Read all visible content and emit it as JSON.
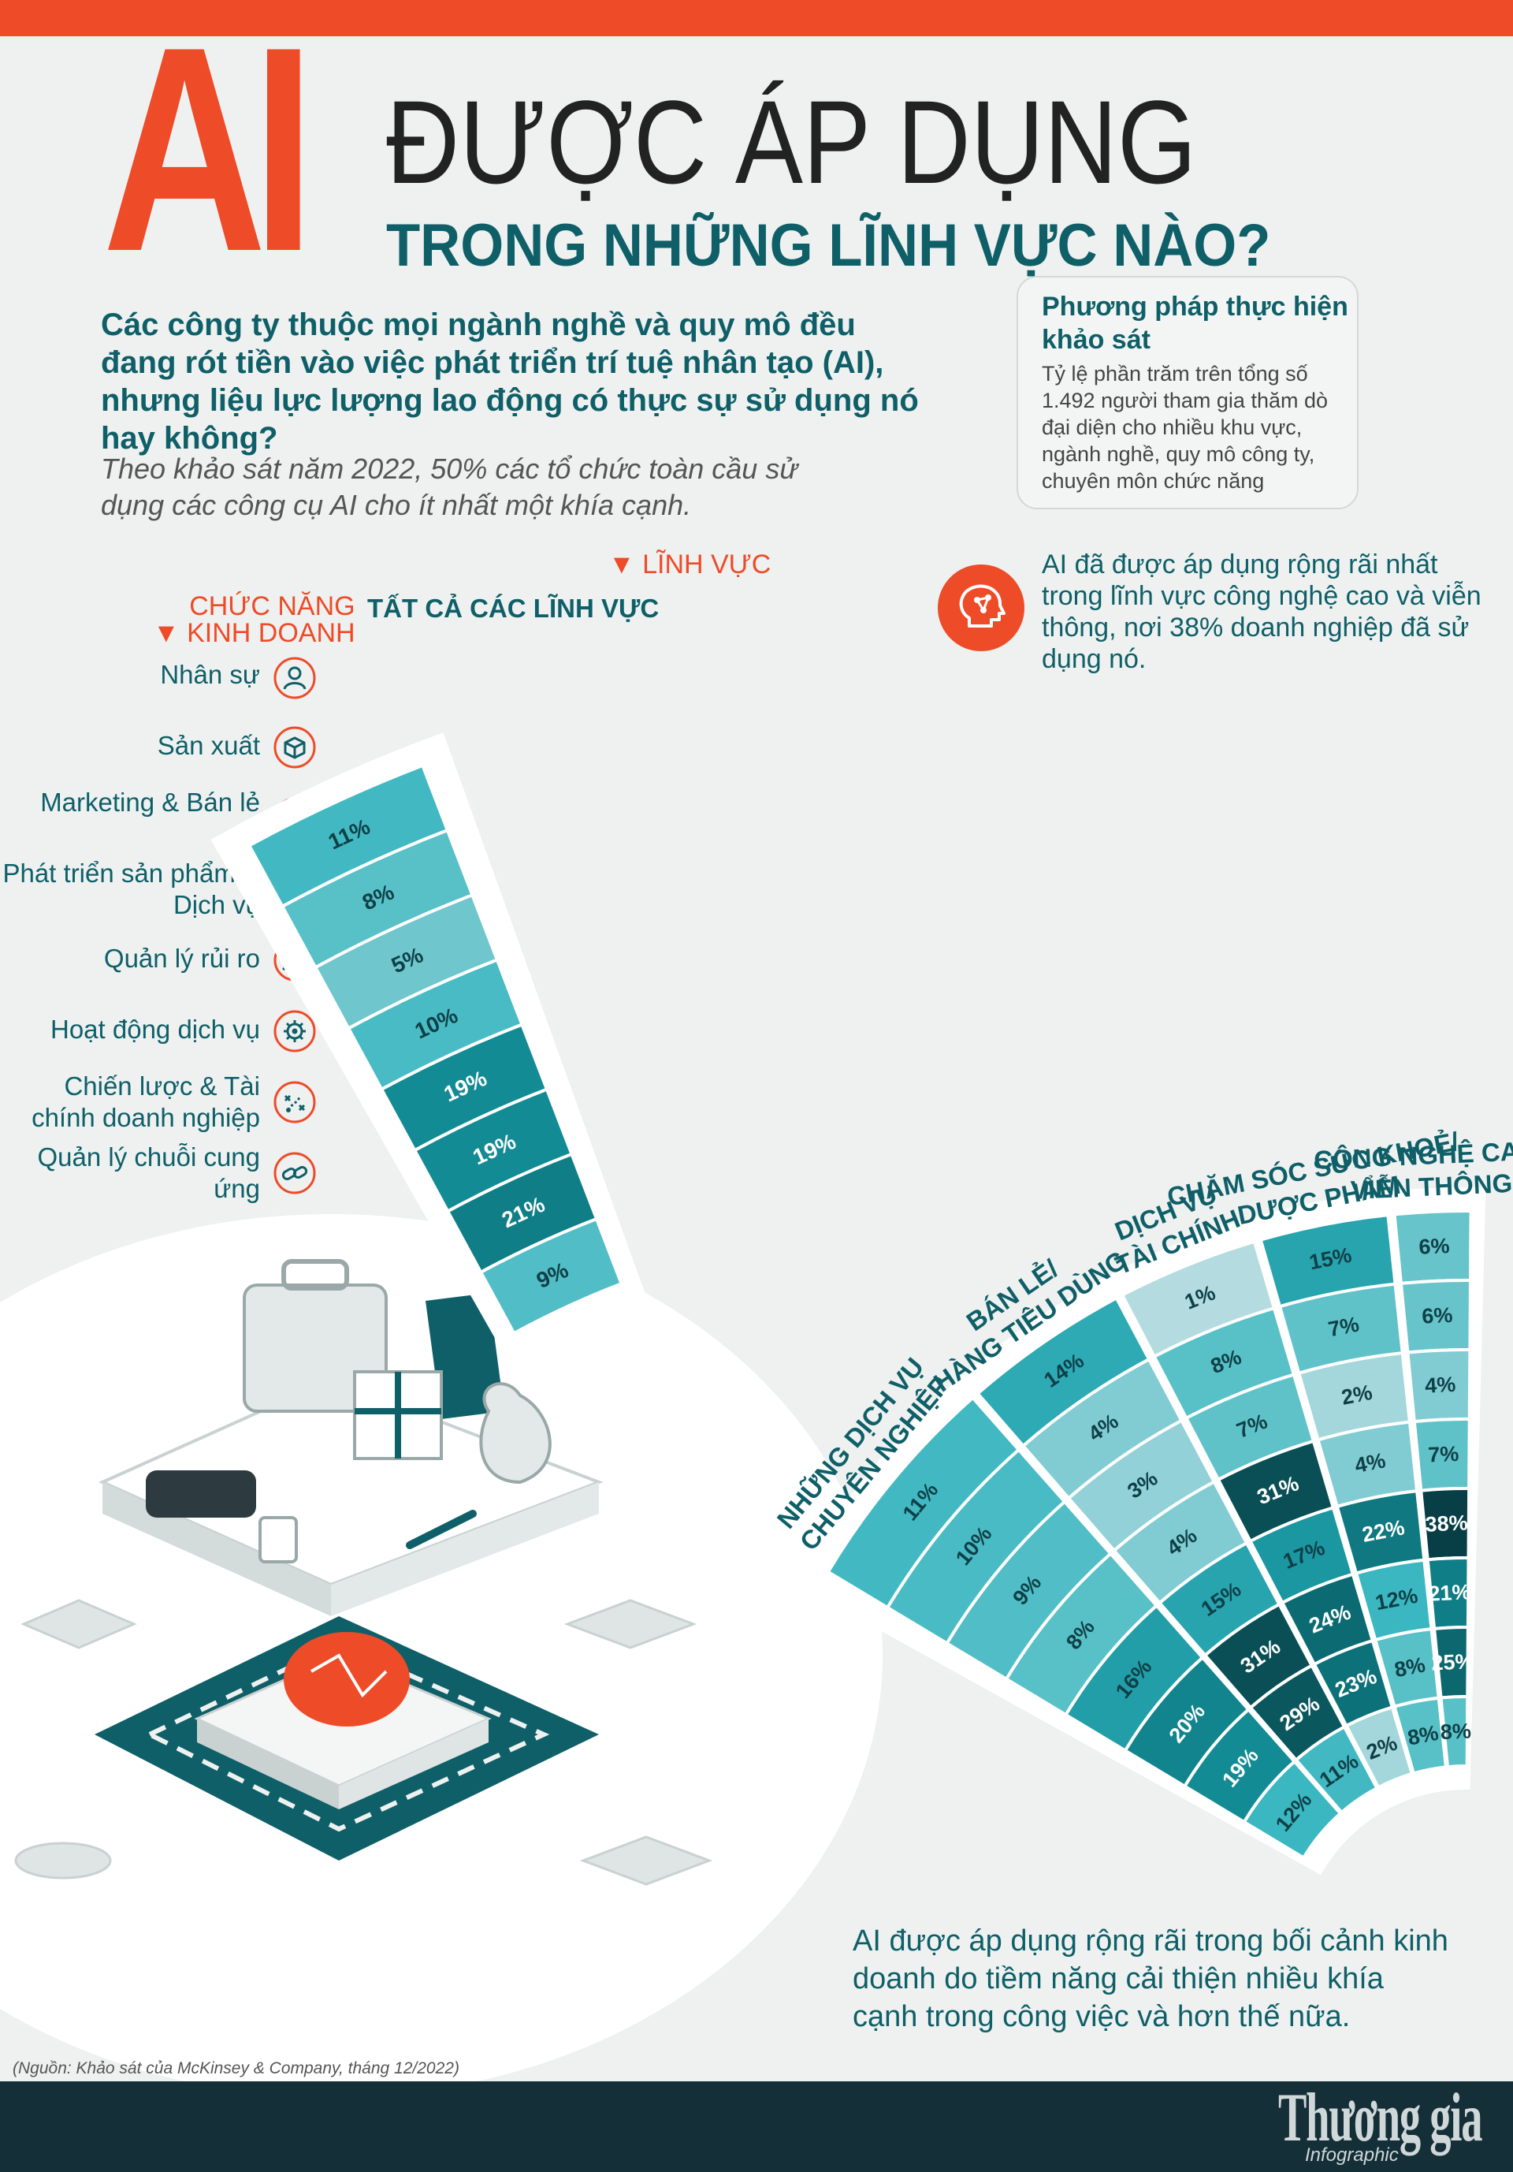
{
  "header": {
    "ai": "AI",
    "title_line1": "ĐƯỢC ÁP DỤNG",
    "title_line2": "TRONG NHỮNG LĨNH VỰC NÀO?"
  },
  "intro": "Các công ty thuộc mọi ngành nghề và quy mô đều đang rót tiền vào việc phát triển trí tuệ nhân tạo (AI), nhưng liệu lực lượng lao động có thực sự sử dụng nó hay không?",
  "note": "Theo khảo sát năm 2022, 50% các tổ chức toàn cầu sử dụng các công cụ AI cho ít nhất một khía cạnh.",
  "methodology": {
    "title": "Phương pháp thực hiện khảo sát",
    "text": "Tỷ lệ phần trăm trên tổng số 1.492 người tham gia thăm dò đại diện cho nhiều khu vực, ngành nghề, quy mô công ty, chuyên môn chức năng"
  },
  "highlight": "AI đã được áp dụng rộng rãi nhất trong lĩnh vực công nghệ cao và viễn thông, nơi 38% doanh nghiệp đã sử dụng nó.",
  "bottom_text": "AI được áp dụng rộng rãi trong bối cảnh kinh doanh do tiềm năng cải thiện nhiều khía cạnh trong công việc và hơn thế nữa.",
  "source": "(Nguồn: Khảo sát của McKinsey & Company, tháng 12/2022)",
  "brand": {
    "name": "Thương gia",
    "sub": "Infographic"
  },
  "axis_labels": {
    "sectors": "▼ LĨNH VỰC",
    "functions_l1": "CHỨC NĂNG",
    "functions_l2": "▼ KINH DOANH"
  },
  "colors": {
    "accent": "#ee4b28",
    "dark_teal": "#0f5f68",
    "footer": "#142f37"
  },
  "chart_data": {
    "type": "heatmap",
    "rows": [
      "Nhân sự",
      "Sản xuất",
      "Marketing & Bán lẻ",
      "Phát triển sản phẩm & Dịch vụ",
      "Quản lý rủi ro",
      "Hoạt động dịch vụ",
      "Chiến lược & Tài chính doanh nghiệp",
      "Quản lý chuỗi cung ứng"
    ],
    "row_icons": [
      "person-icon",
      "box-icon",
      "money-bag-icon",
      "magnifier-icon",
      "warning-icon",
      "gear-icon",
      "strategy-icon",
      "chain-icon"
    ],
    "all_sectors": {
      "label": "TẤT CẢ CÁC LĨNH VỰC",
      "values": [
        11,
        8,
        5,
        10,
        19,
        19,
        21,
        9
      ]
    },
    "columns": [
      {
        "label": "NHỮNG DỊCH VỤ CHUYÊN NGHIỆP",
        "values": [
          11,
          10,
          9,
          8,
          16,
          20,
          19,
          12
        ]
      },
      {
        "label": "BÁN LẺ/ HÀNG TIÊU DÙNG",
        "values": [
          14,
          4,
          3,
          4,
          15,
          31,
          29,
          11
        ]
      },
      {
        "label": "DỊCH VỤ TÀI CHÍNH",
        "values": [
          1,
          8,
          7,
          31,
          17,
          24,
          23,
          2
        ]
      },
      {
        "label": "CHĂM SÓC SỨC KHOẺ/ DƯỢC PHẨM",
        "values": [
          15,
          7,
          2,
          4,
          22,
          12,
          8,
          8
        ]
      },
      {
        "label": "CÔNG NGHỆ CAO/ VIỄN THÔNG",
        "values": [
          6,
          6,
          4,
          7,
          38,
          21,
          25,
          8
        ]
      }
    ],
    "unit": "%"
  }
}
